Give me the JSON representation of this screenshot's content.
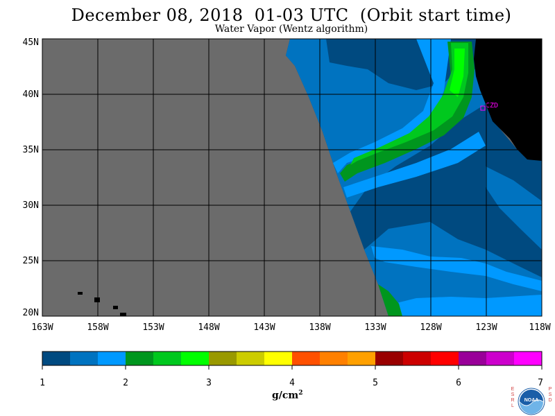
{
  "header": {
    "title": "December 08, 2018  01-03 UTC  (Orbit start time)",
    "subtitle": "Water Vapor (Wentz algorithm)"
  },
  "map": {
    "lat_labels": [
      "45N",
      "40N",
      "35N",
      "30N",
      "25N",
      "20N"
    ],
    "lon_labels": [
      "163W",
      "158W",
      "153W",
      "148W",
      "143W",
      "138W",
      "133W",
      "128W",
      "123W",
      "118W"
    ],
    "station_label": "CZD",
    "colors": {
      "no_data": "#6b6b6b",
      "land": "#000000",
      "station": "#ff00ff"
    }
  },
  "colorbar": {
    "tick_labels": [
      "1",
      "2",
      "3",
      "4",
      "5",
      "6",
      "7"
    ],
    "units_label": "g/cm",
    "units_exponent": "2",
    "colors": [
      "#004a80",
      "#0073c0",
      "#0099ff",
      "#00961e",
      "#00c81e",
      "#00ff00",
      "#999900",
      "#cccc00",
      "#ffff00",
      "#ff5000",
      "#ff8000",
      "#ffa000",
      "#990000",
      "#cc0000",
      "#ff0000",
      "#990099",
      "#cc00cc",
      "#ff00ff"
    ]
  },
  "logo": {
    "left_letters": [
      "E",
      "S",
      "R",
      "L"
    ],
    "right_letters": [
      "P",
      "S",
      "D"
    ],
    "text": "NOAA"
  }
}
